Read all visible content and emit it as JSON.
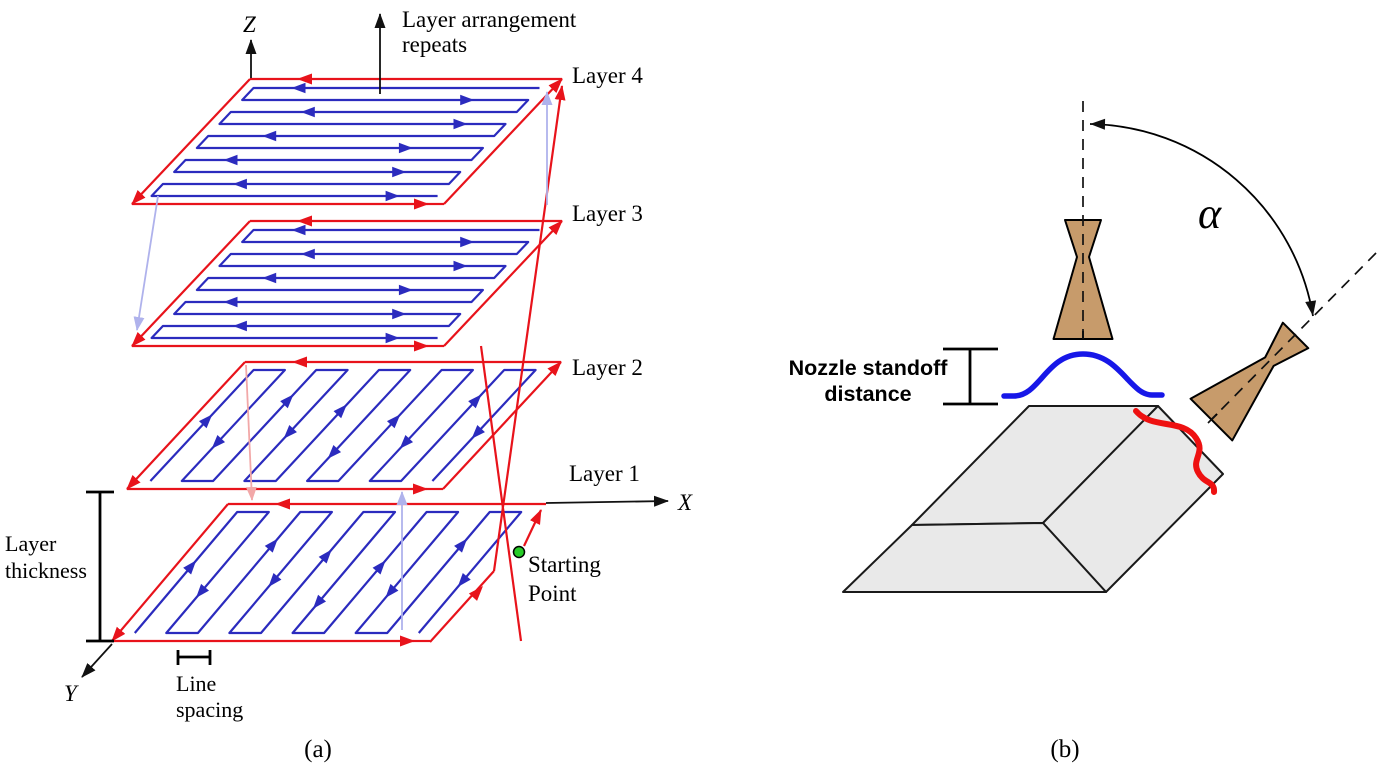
{
  "figure": {
    "panel_a": {
      "caption": "(a)",
      "axis": {
        "x": "X",
        "y": "Y",
        "z": "Z"
      },
      "repeat_note_line1": "Layer arrangement",
      "repeat_note_line2": "repeats",
      "layers": [
        {
          "label": "Layer 4"
        },
        {
          "label": "Layer 3"
        },
        {
          "label": "Layer 2"
        },
        {
          "label": "Layer 1"
        }
      ],
      "layer_thickness_line1": "Layer",
      "layer_thickness_line2": "thickness",
      "line_spacing_line1": "Line",
      "line_spacing_line2": "spacing",
      "starting_point_line1": "Starting",
      "starting_point_line2": "Point"
    },
    "panel_b": {
      "caption": "(b)",
      "angle_label": "α",
      "standoff_line1": "Nozzle standoff",
      "standoff_line2": "distance"
    },
    "colors": {
      "toolpath_red": "#E8131B",
      "raster_blue": "#2B2BBE",
      "transition_lavender": "#AFB2EC",
      "transition_pink": "#F2A8A8",
      "start_green": "#27CC27",
      "nozzle_tan": "#C79B6B",
      "substrate_gray": "#E9E9E9",
      "deposit_blue": "#1717E8",
      "track_red": "#EE1111"
    }
  }
}
